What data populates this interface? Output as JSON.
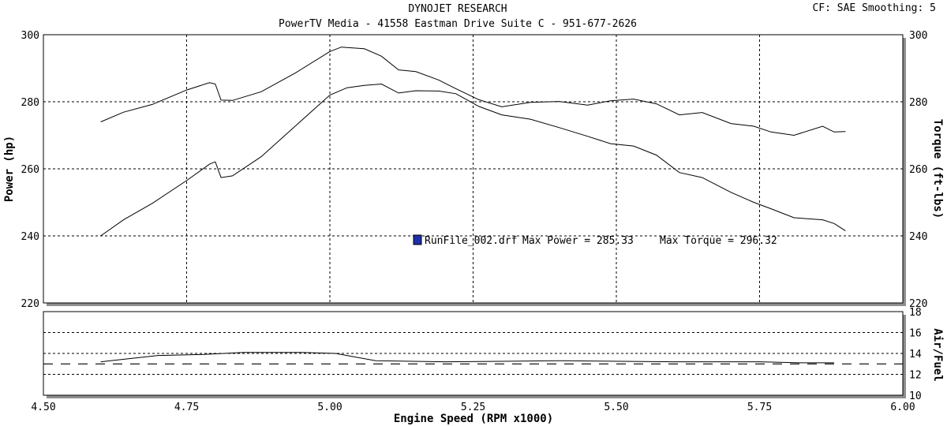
{
  "header": {
    "title": "DYNOJET RESEARCH",
    "subtitle": "PowerTV Media - 41558 Eastman Drive Suite C - 951-677-2626",
    "settings": "CF: SAE  Smoothing: 5"
  },
  "legend": {
    "run_file": "RunFile_002.drf",
    "max_power_label": "Max Power = 285.33",
    "max_torque_label": "Max Torque = 296.32",
    "marker_color": "#1f2fa8"
  },
  "chart_data": [
    {
      "type": "line",
      "name": "power-torque",
      "xlabel": "Engine Speed (RPM x1000)",
      "ylabel": "Power (hp)",
      "ylabel_right": "Torque (ft-lbs)",
      "xlim": [
        4.5,
        6.0
      ],
      "ylim": [
        220,
        300
      ],
      "x_ticks": [
        "4.50",
        "4.75",
        "5.00",
        "5.25",
        "5.50",
        "5.75",
        "6.00"
      ],
      "y_ticks": [
        "220",
        "240",
        "260",
        "280",
        "300"
      ],
      "y_ticks_right": [
        "220",
        "240",
        "260",
        "280",
        "300"
      ],
      "grid": true,
      "series": [
        {
          "key": "power",
          "x": [
            4.6,
            4.64,
            4.69,
            4.75,
            4.79,
            4.8,
            4.81,
            4.83,
            4.88,
            4.94,
            5.0,
            5.03,
            5.06,
            5.09,
            5.12,
            5.15,
            5.19,
            5.22,
            5.26,
            5.3,
            5.35,
            5.4,
            5.45,
            5.49,
            5.53,
            5.57,
            5.61,
            5.65,
            5.7,
            5.74,
            5.77,
            5.81,
            5.86,
            5.88,
            5.9
          ],
          "values": [
            240.0,
            244.8,
            249.7,
            256.5,
            261.4,
            262.1,
            257.4,
            257.9,
            263.6,
            272.8,
            282.0,
            284.2,
            284.9,
            285.3,
            282.6,
            283.3,
            283.2,
            282.4,
            278.6,
            276.1,
            274.8,
            272.3,
            269.7,
            267.5,
            266.8,
            264.1,
            258.9,
            257.4,
            253.0,
            250.0,
            248.1,
            245.4,
            244.8,
            243.7,
            241.5
          ]
        },
        {
          "key": "torque",
          "x": [
            4.6,
            4.64,
            4.69,
            4.75,
            4.79,
            4.8,
            4.81,
            4.83,
            4.88,
            4.94,
            5.0,
            5.02,
            5.06,
            5.09,
            5.12,
            5.15,
            5.19,
            5.22,
            5.26,
            5.3,
            5.35,
            5.4,
            5.45,
            5.49,
            5.53,
            5.57,
            5.61,
            5.65,
            5.7,
            5.74,
            5.77,
            5.81,
            5.86,
            5.88,
            5.9
          ],
          "values": [
            274.0,
            276.9,
            279.2,
            283.5,
            285.7,
            285.3,
            280.5,
            280.4,
            283.0,
            288.6,
            295.0,
            296.3,
            295.8,
            293.6,
            289.5,
            289.0,
            286.5,
            283.9,
            280.6,
            278.5,
            279.8,
            280.1,
            279.0,
            280.3,
            280.8,
            279.4,
            276.1,
            276.8,
            273.5,
            272.7,
            271.0,
            270.0,
            272.7,
            271.0,
            271.1
          ]
        }
      ]
    },
    {
      "type": "line",
      "name": "air-fuel",
      "ylabel": "Air/Fuel",
      "xlim": [
        4.5,
        6.0
      ],
      "ylim": [
        10,
        18
      ],
      "y_ticks_right": [
        "10",
        "12",
        "14",
        "16",
        "18"
      ],
      "grid": true,
      "series": [
        {
          "key": "afr",
          "x": [
            4.6,
            4.7,
            4.78,
            4.85,
            4.95,
            5.01,
            5.04,
            5.08,
            5.2,
            5.4,
            5.6,
            5.75,
            5.82,
            5.88
          ],
          "values": [
            13.2,
            13.8,
            13.9,
            14.1,
            14.1,
            14.0,
            13.7,
            13.3,
            13.2,
            13.3,
            13.2,
            13.2,
            13.1,
            13.1
          ]
        },
        {
          "key": "target",
          "dashed": true,
          "x": [
            4.5,
            6.0
          ],
          "values": [
            13.0,
            13.0
          ]
        }
      ]
    }
  ]
}
